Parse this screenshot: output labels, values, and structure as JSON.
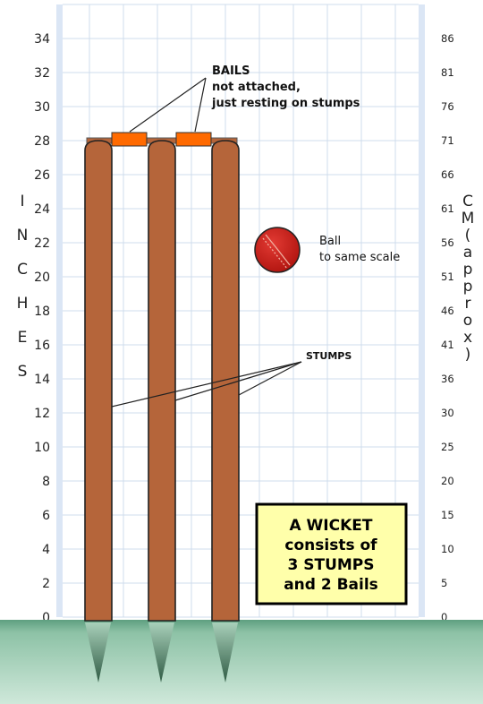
{
  "inch_ticks": [
    "0",
    "2",
    "4",
    "6",
    "8",
    "10",
    "12",
    "14",
    "16",
    "18",
    "20",
    "22",
    "24",
    "26",
    "28",
    "30",
    "32",
    "34"
  ],
  "cm_ticks": [
    "0",
    "5",
    "10",
    "15",
    "20",
    "25",
    "30",
    "36",
    "41",
    "46",
    "51",
    "56",
    "61",
    "66",
    "71",
    "76",
    "81",
    "86"
  ],
  "left_axis_label": [
    "I",
    "N",
    "C",
    "H",
    "E",
    "S"
  ],
  "right_axis_label": [
    "C",
    "M",
    "(",
    "a",
    "p",
    "p",
    "r",
    "o",
    "x",
    ")"
  ],
  "bails_callout": {
    "line1": "BAILS",
    "line2": "not attached,",
    "line3": "just resting on stumps"
  },
  "ball_callout": {
    "line1": "Ball",
    "line2": "to same scale"
  },
  "stumps_callout": "STUMPS",
  "info_box": {
    "line1": "A WICKET",
    "line2": "consists of",
    "line3": "3 STUMPS",
    "line4": "and 2 Bails"
  },
  "colors": {
    "stump": "#b5653a",
    "bail": "#ff6a00",
    "ball": "#cc1f1a",
    "grass": "#6daa8a",
    "info_box_fill": "#ffffaa",
    "grid": "#cfdcec",
    "axis_band": "#dbe6f5"
  }
}
